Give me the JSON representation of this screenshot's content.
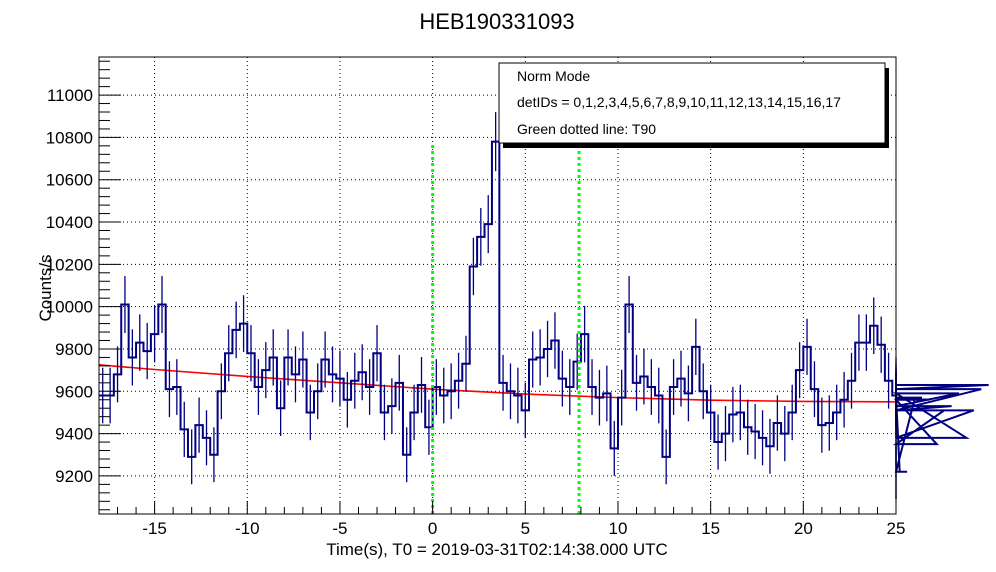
{
  "chart_data": {
    "type": "line",
    "title": "HEB190331093",
    "xlabel": "Time(s), T0 = 2019-03-31T02:14:38.000 UTC",
    "ylabel": "Counts/s",
    "xlim": [
      -18,
      25
    ],
    "ylim": [
      9020,
      11180
    ],
    "grid": true,
    "x_ticks": [
      -15,
      -10,
      -5,
      0,
      5,
      10,
      15,
      20,
      25
    ],
    "y_ticks": [
      9200,
      9400,
      9600,
      9800,
      10000,
      10200,
      10400,
      10600,
      10800,
      11000
    ],
    "x_tick_labels": [
      "-15",
      "-10",
      "-5",
      "0",
      "5",
      "10",
      "15",
      "20",
      "25"
    ],
    "y_tick_labels": [
      "9200",
      "9400",
      "9600",
      "9800",
      "10000",
      "10200",
      "10400",
      "10600",
      "10800",
      "11000"
    ],
    "bin_width": 0.4,
    "series": [
      {
        "name": "light curve",
        "color": "#000080",
        "x_start": -18.0,
        "values": [
          9580,
          9580,
          9680,
          10010,
          9760,
          9830,
          9790,
          9870,
          10010,
          9610,
          9620,
          9420,
          9290,
          9440,
          9380,
          9300,
          9600,
          9780,
          9890,
          9920,
          9780,
          9620,
          9700,
          9760,
          9520,
          9760,
          9680,
          9750,
          9500,
          9600,
          9750,
          9680,
          9660,
          9560,
          9650,
          9690,
          9620,
          9780,
          9500,
          9530,
          9640,
          9300,
          9500,
          9630,
          9430,
          9620,
          9580,
          9600,
          9650,
          9730,
          10190,
          10330,
          10390,
          10780,
          9640,
          9600,
          9580,
          9510,
          9750,
          9760,
          9800,
          9840,
          9660,
          9620,
          9740,
          9870,
          9620,
          9570,
          9590,
          9330,
          9570,
          10010,
          9640,
          9670,
          9620,
          9580,
          9290,
          9620,
          9660,
          9590,
          9810,
          9600,
          9500,
          9360,
          9400,
          9490,
          9500,
          9430,
          9410,
          9380,
          9340,
          9450,
          9400,
          9500,
          9700,
          9810,
          9610,
          9440,
          9450,
          9500,
          9560,
          9650,
          9830,
          9830,
          9910,
          9820,
          9650,
          9580,
          9220,
          9220,
          9560,
          9570,
          9560,
          9350,
          9510,
          9530,
          9590,
          9380,
          9510,
          9610,
          9630
        ]
      },
      {
        "name": "background fit",
        "color": "#ff0000",
        "x": [
          -18,
          -15,
          -10,
          -5,
          0,
          5,
          10,
          15,
          20,
          25
        ],
        "values": [
          9725,
          9703,
          9670,
          9640,
          9610,
          9587,
          9570,
          9558,
          9552,
          9550
        ]
      }
    ],
    "t90_lines": [
      {
        "x": 0.0,
        "color": "#00ff00",
        "top": 10770
      },
      {
        "x": 7.9,
        "color": "#00ff00",
        "top": 10780
      }
    ],
    "legend": {
      "placement": "top-right",
      "lines": [
        "Norm Mode",
        "detIDs = 0,1,2,3,4,5,6,7,8,9,10,11,12,13,14,15,16,17",
        "Green dotted line: T90"
      ]
    }
  }
}
